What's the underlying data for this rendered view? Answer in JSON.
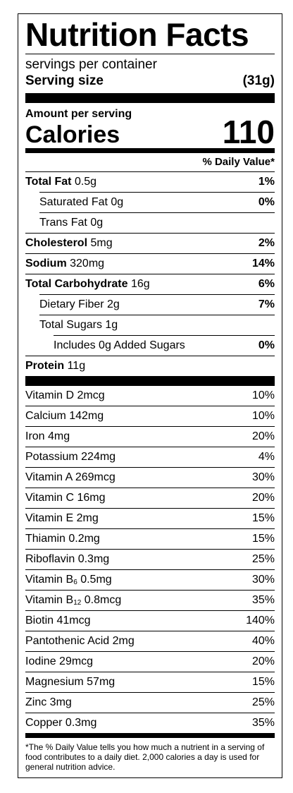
{
  "label": {
    "title": "Nutrition Facts",
    "servings_per_container": "servings per container",
    "serving_size_label": "Serving size",
    "serving_size_value": "(31g)",
    "amount_per_serving": "Amount per serving",
    "calories_label": "Calories",
    "calories_value": "110",
    "daily_value_header": "% Daily Value*"
  },
  "nutrients": [
    {
      "name": "Total Fat",
      "amount": "0.5g",
      "dv": "1%"
    },
    {
      "name": "Saturated Fat",
      "amount": "0g",
      "dv": "0%"
    },
    {
      "name": "Trans Fat",
      "amount": "0g",
      "dv": ""
    },
    {
      "name": "Cholesterol",
      "amount": "5mg",
      "dv": "2%"
    },
    {
      "name": "Sodium",
      "amount": "320mg",
      "dv": "14%"
    },
    {
      "name": "Total Carbohydrate",
      "amount": "16g",
      "dv": "6%"
    },
    {
      "name": "Dietary Fiber",
      "amount": "2g",
      "dv": "7%"
    },
    {
      "name": "Total Sugars",
      "amount": "1g",
      "dv": ""
    },
    {
      "name": "Includes 0g Added Sugars",
      "amount": "",
      "dv": "0%"
    },
    {
      "name": "Protein",
      "amount": "11g",
      "dv": ""
    }
  ],
  "vitamins": [
    {
      "label": "Vitamin D 2mcg",
      "dv": "10%"
    },
    {
      "label": "Calcium 142mg",
      "dv": "10%"
    },
    {
      "label": "Iron 4mg",
      "dv": "20%"
    },
    {
      "label": "Potassium 224mg",
      "dv": "4%"
    },
    {
      "label": "Vitamin A 269mcg",
      "dv": "30%"
    },
    {
      "label": "Vitamin C 16mg",
      "dv": "20%"
    },
    {
      "label": "Vitamin E 2mg",
      "dv": "15%"
    },
    {
      "label": "Thiamin 0.2mg",
      "dv": "15%"
    },
    {
      "label": "Riboflavin 0.3mg",
      "dv": "25%"
    },
    {
      "label_prefix": "Vitamin B",
      "label_sub": "6",
      "label_suffix": " 0.5mg",
      "dv": "30%"
    },
    {
      "label_prefix": "Vitamin B",
      "label_sub": "12",
      "label_suffix": " 0.8mcg",
      "dv": "35%"
    },
    {
      "label": "Biotin 41mcg",
      "dv": "140%"
    },
    {
      "label": "Pantothenic Acid 2mg",
      "dv": "40%"
    },
    {
      "label": "Iodine 29mcg",
      "dv": "20%"
    },
    {
      "label": "Magnesium 57mg",
      "dv": "15%"
    },
    {
      "label": "Zinc 3mg",
      "dv": "25%"
    },
    {
      "label": "Copper 0.3mg",
      "dv": "35%"
    }
  ],
  "footnote": "*The % Daily Value tells you how much a nutrient in a serving of food contributes to a daily diet. 2,000 calories a day is used for general nutrition advice."
}
